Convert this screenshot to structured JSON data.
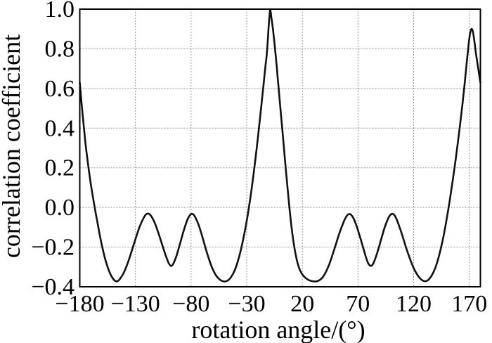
{
  "figure": {
    "background": "#ffffff"
  },
  "style": {
    "curve_color": "#111111",
    "grid_color": "#949494",
    "frame_color": "#000000",
    "text_color": "#000000"
  },
  "chart_data": {
    "type": "line",
    "title": "",
    "xlabel": "rotation angle/(°)",
    "ylabel": "correlation coefficient",
    "xlim": [
      -180,
      180
    ],
    "ylim": [
      -0.4,
      1.0
    ],
    "x_ticks": [
      -180,
      -130,
      -80,
      -30,
      20,
      70,
      120,
      170
    ],
    "x_tick_labels": [
      "−180",
      "−130",
      "−80",
      "−30",
      "20",
      "70",
      "120",
      "170"
    ],
    "y_ticks": [
      1.0,
      0.8,
      0.6,
      0.4,
      0.2,
      0.0,
      -0.2,
      -0.4
    ],
    "y_tick_labels": [
      "1.0",
      "0.8",
      "0.6",
      "0.4",
      "0.2",
      "0.0",
      "−0.2",
      "−0.4"
    ],
    "grid": true,
    "legend": false,
    "series": [
      {
        "name": "correlation-coefficient-vs-rotation-angle",
        "color": "#111111",
        "points": [
          [
            -180,
            0.63
          ],
          [
            -177.5,
            0.47
          ],
          [
            -175,
            0.33
          ],
          [
            -172.5,
            0.215
          ],
          [
            -170,
            0.115
          ],
          [
            -167.5,
            0.03
          ],
          [
            -165,
            -0.05
          ],
          [
            -162.5,
            -0.125
          ],
          [
            -160,
            -0.195
          ],
          [
            -157.5,
            -0.253
          ],
          [
            -155,
            -0.3
          ],
          [
            -152.5,
            -0.336
          ],
          [
            -150,
            -0.36
          ],
          [
            -148,
            -0.371
          ],
          [
            -146,
            -0.372
          ],
          [
            -144,
            -0.361
          ],
          [
            -141,
            -0.335
          ],
          [
            -138,
            -0.297
          ],
          [
            -135,
            -0.249
          ],
          [
            -132,
            -0.196
          ],
          [
            -129,
            -0.143
          ],
          [
            -126,
            -0.094
          ],
          [
            -123,
            -0.057
          ],
          [
            -121,
            -0.038
          ],
          [
            -119,
            -0.031
          ],
          [
            -117,
            -0.036
          ],
          [
            -114,
            -0.061
          ],
          [
            -111,
            -0.102
          ],
          [
            -108,
            -0.152
          ],
          [
            -105,
            -0.205
          ],
          [
            -102,
            -0.254
          ],
          [
            -100,
            -0.282
          ],
          [
            -98,
            -0.295
          ],
          [
            -96,
            -0.284
          ],
          [
            -93,
            -0.242
          ],
          [
            -90,
            -0.184
          ],
          [
            -87,
            -0.124
          ],
          [
            -84,
            -0.072
          ],
          [
            -82,
            -0.047
          ],
          [
            -80,
            -0.033
          ],
          [
            -78,
            -0.035
          ],
          [
            -76,
            -0.052
          ],
          [
            -73,
            -0.091
          ],
          [
            -70,
            -0.145
          ],
          [
            -67,
            -0.204
          ],
          [
            -64,
            -0.259
          ],
          [
            -61,
            -0.305
          ],
          [
            -58,
            -0.339
          ],
          [
            -55,
            -0.36
          ],
          [
            -52,
            -0.371
          ],
          [
            -49,
            -0.373
          ],
          [
            -46,
            -0.364
          ],
          [
            -43,
            -0.342
          ],
          [
            -40,
            -0.306
          ],
          [
            -37,
            -0.253
          ],
          [
            -34,
            -0.183
          ],
          [
            -31,
            -0.1
          ],
          [
            -29,
            -0.035
          ],
          [
            -27,
            0.038
          ],
          [
            -25,
            0.118
          ],
          [
            -23,
            0.206
          ],
          [
            -21,
            0.3
          ],
          [
            -19,
            0.4
          ],
          [
            -17,
            0.505
          ],
          [
            -15,
            0.613
          ],
          [
            -13,
            0.72
          ],
          [
            -12,
            0.77
          ],
          [
            -11,
            0.848
          ],
          [
            -10.5,
            0.893
          ],
          [
            -10,
            0.933
          ],
          [
            -9.5,
            0.968
          ],
          [
            -9,
            0.997
          ],
          [
            -8.5,
            0.99
          ],
          [
            -8,
            0.966
          ],
          [
            -7,
            0.925
          ],
          [
            -6,
            0.878
          ],
          [
            -5,
            0.825
          ],
          [
            -4,
            0.768
          ],
          [
            -3,
            0.708
          ],
          [
            -2,
            0.645
          ],
          [
            -1,
            0.582
          ],
          [
            0,
            0.518
          ],
          [
            1,
            0.455
          ],
          [
            2,
            0.392
          ],
          [
            4,
            0.266
          ],
          [
            6,
            0.14
          ],
          [
            8,
            0.02
          ],
          [
            10,
            -0.085
          ],
          [
            12,
            -0.172
          ],
          [
            14,
            -0.238
          ],
          [
            16,
            -0.286
          ],
          [
            18,
            -0.318
          ],
          [
            20,
            -0.338
          ],
          [
            23,
            -0.356
          ],
          [
            26,
            -0.367
          ],
          [
            29,
            -0.372
          ],
          [
            32,
            -0.373
          ],
          [
            35,
            -0.368
          ],
          [
            38,
            -0.354
          ],
          [
            41,
            -0.327
          ],
          [
            44,
            -0.289
          ],
          [
            47,
            -0.241
          ],
          [
            50,
            -0.188
          ],
          [
            53,
            -0.135
          ],
          [
            56,
            -0.089
          ],
          [
            58,
            -0.062
          ],
          [
            60,
            -0.042
          ],
          [
            62,
            -0.033
          ],
          [
            64,
            -0.038
          ],
          [
            66,
            -0.055
          ],
          [
            69,
            -0.098
          ],
          [
            72,
            -0.152
          ],
          [
            75,
            -0.21
          ],
          [
            77,
            -0.248
          ],
          [
            79,
            -0.279
          ],
          [
            81,
            -0.294
          ],
          [
            83,
            -0.289
          ],
          [
            85,
            -0.266
          ],
          [
            88,
            -0.216
          ],
          [
            91,
            -0.157
          ],
          [
            94,
            -0.101
          ],
          [
            97,
            -0.057
          ],
          [
            99,
            -0.038
          ],
          [
            101,
            -0.032
          ],
          [
            103,
            -0.041
          ],
          [
            105,
            -0.064
          ],
          [
            108,
            -0.11
          ],
          [
            111,
            -0.163
          ],
          [
            114,
            -0.216
          ],
          [
            117,
            -0.264
          ],
          [
            120,
            -0.305
          ],
          [
            123,
            -0.337
          ],
          [
            126,
            -0.359
          ],
          [
            128,
            -0.368
          ],
          [
            130,
            -0.372
          ],
          [
            132,
            -0.37
          ],
          [
            134,
            -0.361
          ],
          [
            137,
            -0.336
          ],
          [
            140,
            -0.296
          ],
          [
            143,
            -0.24
          ],
          [
            146,
            -0.168
          ],
          [
            148,
            -0.112
          ],
          [
            150,
            -0.048
          ],
          [
            152,
            0.02
          ],
          [
            154,
            0.093
          ],
          [
            156,
            0.17
          ],
          [
            158,
            0.252
          ],
          [
            160,
            0.338
          ],
          [
            162,
            0.43
          ],
          [
            164,
            0.528
          ],
          [
            166,
            0.632
          ],
          [
            168,
            0.748
          ],
          [
            169,
            0.8
          ],
          [
            170,
            0.85
          ],
          [
            171,
            0.886
          ],
          [
            172,
            0.9
          ],
          [
            173,
            0.892
          ],
          [
            174,
            0.862
          ],
          [
            175,
            0.82
          ],
          [
            176,
            0.775
          ],
          [
            178,
            0.703
          ],
          [
            180,
            0.63
          ]
        ]
      }
    ]
  }
}
